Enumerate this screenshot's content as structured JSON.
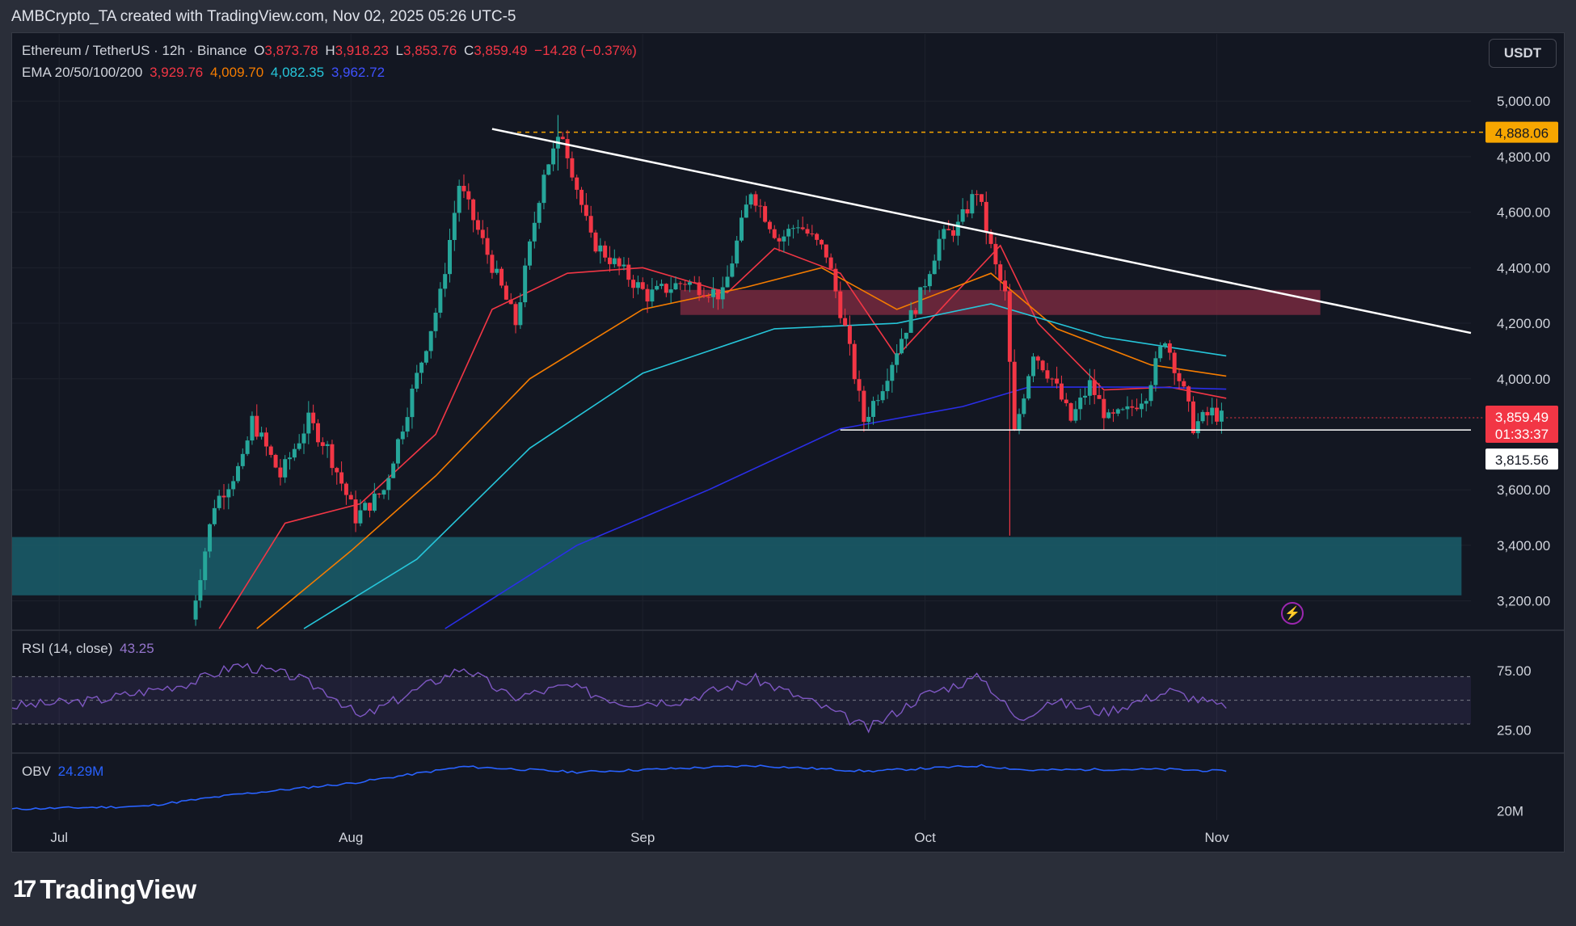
{
  "caption": "AMBCrypto_TA created with TradingView.com, Nov 02, 2025 05:26 UTC-5",
  "brand": "TradingView",
  "brand_mark": "17",
  "currency_button": "USDT",
  "bolt_icon": "lightning-icon",
  "legend": {
    "symbol": "Ethereum / TetherUS · 12h · Binance",
    "o_label": "O",
    "o_value": "3,873.78",
    "h_label": "H",
    "h_value": "3,918.23",
    "l_label": "L",
    "l_value": "3,853.76",
    "c_label": "C",
    "c_value": "3,859.49",
    "change": "−14.28 (−0.37%)",
    "ema_label": "EMA 20/50/100/200",
    "ema20": "3,929.76",
    "ema50": "4,009.70",
    "ema100": "4,082.35",
    "ema200": "3,962.72",
    "rsi_label": "RSI (14, close)",
    "rsi_value": "43.25",
    "obv_label": "OBV",
    "obv_value": "24.29M"
  },
  "colors": {
    "up": "#26a69a",
    "down": "#f23645",
    "ema20": "#f23645",
    "ema50": "#f57c00",
    "ema100": "#26c6da",
    "ema200": "#2a2ee8",
    "rsi": "#7e57c2",
    "obv": "#2962ff",
    "support_zone": "#1a5e6b",
    "resistance_zone": "#8b2e45",
    "level": "#f7a600"
  },
  "chart_data": {
    "type": "candlestick",
    "x_ticks": [
      "Jul",
      "Aug",
      "Sep",
      "Oct",
      "Nov"
    ],
    "y_ticks": [
      "5,000.00",
      "4,800.00",
      "4,600.00",
      "4,400.00",
      "4,200.00",
      "4,000.00",
      "3,600.00",
      "3,400.00",
      "3,200.00"
    ],
    "ylim": [
      3100,
      5050
    ],
    "x_range": [
      "2025-06-26",
      "2025-11-28"
    ],
    "tick_dates": [
      "2025-07-01",
      "2025-08-01",
      "2025-09-01",
      "2025-10-01",
      "2025-11-01"
    ],
    "price_labels": {
      "last": "3,859.49",
      "countdown": "01:33:37",
      "support": "3,815.56",
      "high_level": "4,888.06"
    },
    "levels": {
      "high_level": 4888.06,
      "support": 3815.56,
      "last": 3859.49
    },
    "zones": [
      {
        "name": "resistance",
        "from": 4230,
        "to": 4320,
        "start": "2025-09-05",
        "end": "2025-11-12"
      },
      {
        "name": "support",
        "from": 3220,
        "to": 3430,
        "start": "2025-06-26",
        "end": "2025-11-27"
      }
    ],
    "trendlines": [
      {
        "name": "descending",
        "start": [
          "2025-08-16",
          4900
        ],
        "end": [
          "2025-11-28",
          4165
        ]
      },
      {
        "name": "support-line",
        "start": [
          "2025-09-22",
          3815.56
        ],
        "end": [
          "2025-11-28",
          3815.56
        ]
      }
    ],
    "price_path": [
      [
        "2025-07-15",
        3050
      ],
      [
        "2025-07-18",
        3550
      ],
      [
        "2025-07-21",
        3700
      ],
      [
        "2025-07-22",
        3850
      ],
      [
        "2025-07-25",
        3650
      ],
      [
        "2025-07-28",
        3850
      ],
      [
        "2025-07-30",
        3750
      ],
      [
        "2025-08-02",
        3500
      ],
      [
        "2025-08-05",
        3600
      ],
      [
        "2025-08-08",
        3950
      ],
      [
        "2025-08-11",
        4300
      ],
      [
        "2025-08-13",
        4700
      ],
      [
        "2025-08-16",
        4450
      ],
      [
        "2025-08-19",
        4200
      ],
      [
        "2025-08-22",
        4750
      ],
      [
        "2025-08-24",
        4880
      ],
      [
        "2025-08-27",
        4500
      ],
      [
        "2025-08-30",
        4400
      ],
      [
        "2025-09-02",
        4300
      ],
      [
        "2025-09-06",
        4350
      ],
      [
        "2025-09-10",
        4300
      ],
      [
        "2025-09-13",
        4680
      ],
      [
        "2025-09-16",
        4500
      ],
      [
        "2025-09-18",
        4560
      ],
      [
        "2025-09-21",
        4450
      ],
      [
        "2025-09-23",
        4180
      ],
      [
        "2025-09-25",
        3850
      ],
      [
        "2025-09-27",
        3980
      ],
      [
        "2025-09-29",
        4150
      ],
      [
        "2025-10-01",
        4300
      ],
      [
        "2025-10-03",
        4500
      ],
      [
        "2025-10-05",
        4550
      ],
      [
        "2025-10-07",
        4680
      ],
      [
        "2025-10-09",
        4400
      ],
      [
        "2025-10-10",
        4300
      ],
      [
        "2025-10-11",
        3800
      ],
      [
        "2025-10-13",
        4100
      ],
      [
        "2025-10-15",
        4000
      ],
      [
        "2025-10-17",
        3850
      ],
      [
        "2025-10-19",
        3980
      ],
      [
        "2025-10-21",
        3850
      ],
      [
        "2025-10-23",
        3880
      ],
      [
        "2025-10-25",
        3950
      ],
      [
        "2025-10-27",
        4150
      ],
      [
        "2025-10-28",
        4050
      ],
      [
        "2025-10-29",
        3950
      ],
      [
        "2025-10-30",
        3830
      ],
      [
        "2025-11-01",
        3880
      ],
      [
        "2025-11-02",
        3859.49
      ]
    ],
    "ema_lines": [
      {
        "name": "EMA 20",
        "points": [
          [
            "2025-07-18",
            3100
          ],
          [
            "2025-07-25",
            3480
          ],
          [
            "2025-08-02",
            3550
          ],
          [
            "2025-08-10",
            3800
          ],
          [
            "2025-08-16",
            4250
          ],
          [
            "2025-08-24",
            4380
          ],
          [
            "2025-09-01",
            4400
          ],
          [
            "2025-09-10",
            4310
          ],
          [
            "2025-09-15",
            4470
          ],
          [
            "2025-09-22",
            4380
          ],
          [
            "2025-09-28",
            4080
          ],
          [
            "2025-10-04",
            4300
          ],
          [
            "2025-10-09",
            4480
          ],
          [
            "2025-10-13",
            4200
          ],
          [
            "2025-10-20",
            3960
          ],
          [
            "2025-10-27",
            3970
          ],
          [
            "2025-11-02",
            3929.76
          ]
        ]
      },
      {
        "name": "EMA 50",
        "points": [
          [
            "2025-07-22",
            3100
          ],
          [
            "2025-08-01",
            3380
          ],
          [
            "2025-08-10",
            3650
          ],
          [
            "2025-08-20",
            4000
          ],
          [
            "2025-09-01",
            4250
          ],
          [
            "2025-09-12",
            4330
          ],
          [
            "2025-09-20",
            4400
          ],
          [
            "2025-09-28",
            4250
          ],
          [
            "2025-10-08",
            4380
          ],
          [
            "2025-10-15",
            4180
          ],
          [
            "2025-10-25",
            4050
          ],
          [
            "2025-11-02",
            4009.7
          ]
        ]
      },
      {
        "name": "EMA 100",
        "points": [
          [
            "2025-07-27",
            3100
          ],
          [
            "2025-08-08",
            3350
          ],
          [
            "2025-08-20",
            3750
          ],
          [
            "2025-09-01",
            4020
          ],
          [
            "2025-09-15",
            4180
          ],
          [
            "2025-09-28",
            4200
          ],
          [
            "2025-10-08",
            4270
          ],
          [
            "2025-10-20",
            4150
          ],
          [
            "2025-11-02",
            4082.35
          ]
        ]
      },
      {
        "name": "EMA 200",
        "points": [
          [
            "2025-08-11",
            3100
          ],
          [
            "2025-08-25",
            3400
          ],
          [
            "2025-09-08",
            3600
          ],
          [
            "2025-09-22",
            3820
          ],
          [
            "2025-10-05",
            3900
          ],
          [
            "2025-10-12",
            3970
          ],
          [
            "2025-10-25",
            3970
          ],
          [
            "2025-11-02",
            3962.72
          ]
        ]
      }
    ],
    "rsi": {
      "y_ticks": [
        "75.00",
        "25.00"
      ],
      "ylim": [
        15,
        90
      ],
      "bands": [
        30,
        50,
        70
      ],
      "points": [
        [
          "2025-06-26",
          45
        ],
        [
          "2025-07-05",
          50
        ],
        [
          "2025-07-15",
          65
        ],
        [
          "2025-07-20",
          80
        ],
        [
          "2025-07-26",
          70
        ],
        [
          "2025-07-30",
          55
        ],
        [
          "2025-08-02",
          35
        ],
        [
          "2025-08-07",
          55
        ],
        [
          "2025-08-13",
          78
        ],
        [
          "2025-08-18",
          52
        ],
        [
          "2025-08-24",
          62
        ],
        [
          "2025-08-30",
          48
        ],
        [
          "2025-09-05",
          50
        ],
        [
          "2025-09-13",
          68
        ],
        [
          "2025-09-20",
          45
        ],
        [
          "2025-09-25",
          26
        ],
        [
          "2025-10-01",
          55
        ],
        [
          "2025-10-07",
          70
        ],
        [
          "2025-10-11",
          32
        ],
        [
          "2025-10-14",
          50
        ],
        [
          "2025-10-20",
          40
        ],
        [
          "2025-10-27",
          58
        ],
        [
          "2025-11-02",
          43.25
        ]
      ]
    },
    "obv": {
      "y_ticks": [
        "20M"
      ],
      "ylim": [
        19,
        26
      ],
      "points": [
        [
          "2025-06-26",
          20.2
        ],
        [
          "2025-07-10",
          20.5
        ],
        [
          "2025-07-20",
          21.8
        ],
        [
          "2025-08-01",
          23.0
        ],
        [
          "2025-08-13",
          24.8
        ],
        [
          "2025-08-25",
          24.2
        ],
        [
          "2025-09-13",
          24.9
        ],
        [
          "2025-09-25",
          24.3
        ],
        [
          "2025-10-07",
          24.9
        ],
        [
          "2025-10-12",
          24.4
        ],
        [
          "2025-10-20",
          24.5
        ],
        [
          "2025-10-27",
          24.5
        ],
        [
          "2025-11-02",
          24.29
        ]
      ]
    }
  }
}
